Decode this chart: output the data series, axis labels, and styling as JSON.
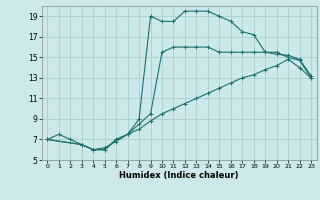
{
  "xlabel": "Humidex (Indice chaleur)",
  "bg_color": "#cce8e8",
  "line_color": "#1a7070",
  "grid_color_major": "#aacfcf",
  "grid_color_minor": "#c0dede",
  "xlim": [
    -0.5,
    23.5
  ],
  "ylim": [
    5,
    20
  ],
  "xticks": [
    0,
    1,
    2,
    3,
    4,
    5,
    6,
    7,
    8,
    9,
    10,
    11,
    12,
    13,
    14,
    15,
    16,
    17,
    18,
    19,
    20,
    21,
    22,
    23
  ],
  "yticks": [
    5,
    7,
    9,
    11,
    13,
    15,
    17,
    19
  ],
  "line1_x": [
    0,
    1,
    2,
    3,
    4,
    5,
    6,
    7,
    8,
    9,
    10,
    11,
    12,
    13,
    14,
    15,
    16,
    17,
    18,
    19,
    20,
    21,
    22,
    23
  ],
  "line1_y": [
    7.0,
    7.5,
    7.0,
    6.5,
    6.0,
    6.2,
    6.8,
    7.5,
    9.0,
    19.0,
    18.5,
    18.5,
    19.5,
    19.5,
    19.5,
    19.0,
    18.5,
    17.5,
    17.2,
    15.5,
    15.5,
    15.0,
    14.7,
    13.0
  ],
  "line2_x": [
    0,
    3,
    4,
    5,
    6,
    7,
    8,
    9,
    10,
    11,
    12,
    13,
    14,
    15,
    16,
    17,
    18,
    19,
    20,
    21,
    22,
    23
  ],
  "line2_y": [
    7.0,
    6.5,
    6.0,
    6.0,
    7.0,
    7.5,
    8.5,
    9.5,
    15.5,
    16.0,
    16.0,
    16.0,
    16.0,
    15.5,
    15.5,
    15.5,
    15.5,
    15.5,
    15.3,
    15.2,
    14.8,
    13.2
  ],
  "line3_x": [
    0,
    3,
    4,
    5,
    6,
    7,
    8,
    9,
    10,
    11,
    12,
    13,
    14,
    15,
    16,
    17,
    18,
    19,
    20,
    21,
    22,
    23
  ],
  "line3_y": [
    7.0,
    6.5,
    6.0,
    6.0,
    7.0,
    7.5,
    8.0,
    8.8,
    9.5,
    10.0,
    10.5,
    11.0,
    11.5,
    12.0,
    12.5,
    13.0,
    13.3,
    13.8,
    14.2,
    14.8,
    14.0,
    13.0
  ]
}
